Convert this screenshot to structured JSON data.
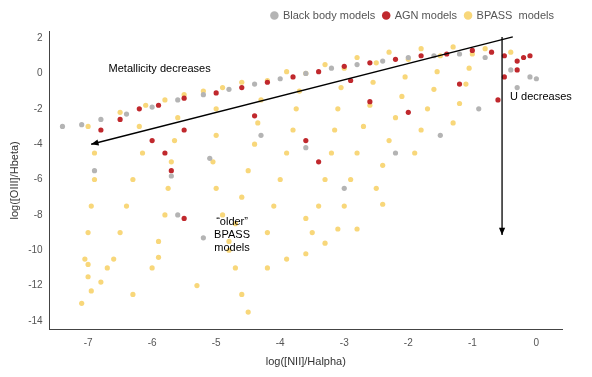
{
  "chart_data": {
    "type": "scatter",
    "x_label": "log([NII]/Halpha)",
    "y_label": "log([OIII]/Hbeta)",
    "xlim": [
      -7.6,
      0.4
    ],
    "ylim": [
      -14.5,
      2.4
    ],
    "xticks": [
      -7,
      -6,
      -5,
      -4,
      -3,
      -2,
      -1,
      0
    ],
    "yticks": [
      -14,
      -12,
      -10,
      -8,
      -6,
      -4,
      -2,
      0,
      2
    ],
    "grid": false,
    "legend": "top-right",
    "marker": "circle",
    "annotations": [
      {
        "text": "Metallicity decreases"
      },
      {
        "text": "U decreases"
      },
      {
        "text": [
          "“older”",
          "BPASS",
          "models"
        ]
      }
    ],
    "series": [
      {
        "name": "Black body models",
        "color": "#b4b4b4",
        "x": [
          -7.4,
          -7.1,
          -6.8,
          -6.4,
          -6.0,
          -5.6,
          -5.2,
          -4.8,
          -4.4,
          -4.0,
          -3.6,
          -3.2,
          -2.8,
          -2.4,
          -2.0,
          -1.6,
          -1.2,
          -0.8,
          -0.4,
          -0.1,
          0.0,
          -6.9,
          -5.7,
          -5.6,
          -5.2,
          -5.1,
          -4.3,
          -3.6,
          -3.0,
          -2.2,
          -1.5,
          -0.9,
          -0.3
        ],
        "values": [
          -3.0,
          -2.9,
          -2.6,
          -2.3,
          -1.9,
          -1.5,
          -1.2,
          -0.9,
          -0.6,
          -0.3,
          0.0,
          0.3,
          0.5,
          0.7,
          0.9,
          1.0,
          1.1,
          0.9,
          0.2,
          -0.2,
          -0.3,
          -5.5,
          -5.8,
          -8.0,
          -9.3,
          -4.8,
          -3.5,
          -4.2,
          -6.5,
          -4.5,
          -3.5,
          -2.0,
          -0.8
        ]
      },
      {
        "name": "AGN models",
        "color": "#c0282d",
        "x": [
          -6.8,
          -6.5,
          -6.2,
          -5.9,
          -5.5,
          -5.0,
          -4.6,
          -4.2,
          -3.8,
          -3.4,
          -3.0,
          -2.6,
          -2.2,
          -1.8,
          -1.4,
          -1.0,
          -0.7,
          -0.5,
          -0.3,
          -0.2,
          -0.1,
          -6.0,
          -5.8,
          -5.7,
          -5.5,
          -5.5,
          -4.4,
          -3.6,
          -3.4,
          -2.9,
          -2.0,
          -1.2,
          -0.6,
          -0.5,
          -0.3,
          -2.6
        ],
        "values": [
          -3.2,
          -2.6,
          -2.0,
          -1.8,
          -1.4,
          -1.1,
          -0.8,
          -0.5,
          -0.2,
          0.1,
          0.4,
          0.6,
          0.8,
          1.0,
          1.1,
          1.3,
          1.2,
          1.0,
          0.7,
          0.9,
          1.0,
          -3.8,
          -4.5,
          -5.5,
          -3.2,
          -8.2,
          -2.4,
          -3.8,
          -5.0,
          -0.4,
          -2.2,
          -0.6,
          -1.5,
          -0.2,
          0.2,
          -1.6
        ]
      },
      {
        "name": "BPASS  models",
        "color": "#f8d77a",
        "x": [
          -7.0,
          -6.9,
          -6.9,
          -6.95,
          -7.0,
          -7.05,
          -7.0,
          -6.95,
          -7.1,
          -7.0,
          -6.1,
          -6.2,
          -6.15,
          -6.3,
          -6.4,
          -6.5,
          -6.6,
          -6.7,
          -5.5,
          -5.6,
          -5.65,
          -5.7,
          -5.75,
          -5.8,
          -5.9,
          -6.0,
          -4.9,
          -5.0,
          -5.0,
          -5.05,
          -5.0,
          -4.9,
          -4.8,
          -4.7,
          -4.6,
          -4.5,
          -4.2,
          -4.3,
          -4.35,
          -4.4,
          -4.5,
          -4.6,
          -4.7,
          -4.8,
          -3.6,
          -3.7,
          -3.75,
          -3.8,
          -3.9,
          -4.0,
          -4.1,
          -4.2,
          -3.0,
          -3.05,
          -3.1,
          -3.15,
          -3.2,
          -3.3,
          -3.4,
          -3.5,
          -3.6,
          -2.5,
          -2.55,
          -2.6,
          -2.7,
          -2.8,
          -2.9,
          -3.0,
          -3.1,
          -2.0,
          -2.05,
          -2.1,
          -2.2,
          -2.3,
          -2.4,
          -2.5,
          -1.5,
          -1.55,
          -1.6,
          -1.7,
          -1.8,
          -1.9,
          -1.0,
          -1.05,
          -1.1,
          -1.2,
          -1.3,
          -6.5,
          -5.8,
          -5.2,
          -4.6,
          -3.9,
          -3.3,
          -2.8,
          -2.3,
          -1.8,
          -1.3,
          -0.8,
          -0.4,
          -3.3,
          -2.8,
          -3.6,
          -2.4,
          -3.9,
          -4.2,
          -5.3,
          -6.3,
          -6.8,
          -5.9
        ],
        "values": [
          -3.0,
          -4.5,
          -6.0,
          -7.5,
          -9.0,
          -10.5,
          -11.5,
          -12.3,
          -13.0,
          -10.8,
          -1.8,
          -3.0,
          -4.5,
          -6.0,
          -7.5,
          -9.0,
          -10.5,
          -11.0,
          -1.2,
          -2.5,
          -3.8,
          -5.0,
          -6.5,
          -8.0,
          -9.5,
          -11.0,
          -0.8,
          -2.0,
          -3.5,
          -5.0,
          -6.5,
          -8.0,
          -9.5,
          -11.0,
          -12.5,
          -13.5,
          -0.4,
          -1.5,
          -2.8,
          -4.0,
          -5.5,
          -7.0,
          -8.5,
          -10.0,
          0.0,
          -1.0,
          -2.0,
          -3.2,
          -4.5,
          -6.0,
          -7.5,
          -9.0,
          0.3,
          -0.8,
          -2.0,
          -3.2,
          -4.5,
          -6.0,
          -7.5,
          -9.0,
          -10.2,
          0.6,
          -0.5,
          -1.8,
          -3.0,
          -4.5,
          -6.0,
          -7.5,
          -8.8,
          0.8,
          -0.2,
          -1.3,
          -2.5,
          -3.8,
          -5.2,
          -6.5,
          1.0,
          0.1,
          -0.9,
          -2.0,
          -3.2,
          -4.5,
          1.1,
          0.3,
          -0.6,
          -1.7,
          -2.8,
          -2.2,
          -1.5,
          -1.0,
          -0.5,
          0.1,
          0.5,
          0.9,
          1.2,
          1.4,
          1.5,
          1.4,
          1.2,
          -9.6,
          -8.8,
          -8.2,
          -7.4,
          -10.5,
          -11.0,
          -12.0,
          -12.5,
          -11.8,
          -10.4
        ]
      }
    ]
  }
}
